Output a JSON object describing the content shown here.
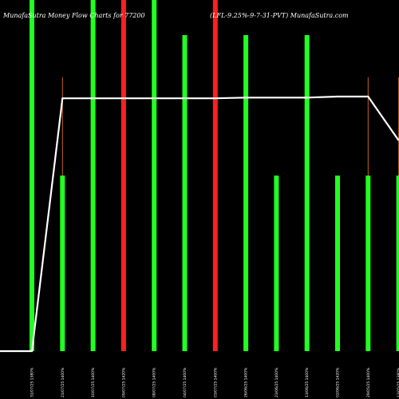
{
  "chart_data": {
    "type": "bar",
    "title_left": "MunafaSutra  Money Flow  Charts for 77200",
    "title_right": "(LFL-9.25%-9-7-31-PVT) MunafaSutra.com",
    "categories": [
      "31/07/25 1380%",
      "21/07/25 1400%",
      "10/07/25 1400%",
      "09/07/25 1420%",
      "08/07/25 1400%",
      "04/07/25 1400%",
      "03/07/25 1400%",
      "26/06/25 1400%",
      "23/06/25 1400%",
      "13/06/25 1400%",
      "02/06/25 1420%",
      "29/05/25 1400%",
      "13/05/25 1380%"
    ],
    "colors": {
      "up": "#22ff22",
      "down": "#ff2020",
      "price_line": "#ffffff",
      "thin_bar": "#c8641e"
    },
    "series": [
      {
        "values": [
          1.0,
          0.5,
          1.0,
          1.0,
          1.0,
          0.9,
          1.0,
          0.9,
          0.5,
          0.9,
          0.5,
          0.5,
          0.5
        ],
        "direction": [
          "up",
          "up",
          "up",
          "down",
          "up",
          "up",
          "down",
          "up",
          "up",
          "up",
          "up",
          "up",
          "up"
        ]
      },
      {
        "values": [
          1380,
          1400,
          1400,
          1420,
          1400,
          1400,
          1400,
          1400,
          1400,
          1400,
          1420,
          1400,
          1380
        ],
        "thin": [
          0,
          0.78,
          0.78,
          0.78,
          0,
          0,
          0.78,
          0,
          0,
          0.78,
          0,
          0.78,
          0.78
        ],
        "price": [
          0.0,
          0.72,
          0.72,
          0.72,
          0.72,
          0.72,
          0.72,
          0.722,
          0.722,
          0.722,
          0.725,
          0.725,
          0.6
        ]
      }
    ]
  }
}
